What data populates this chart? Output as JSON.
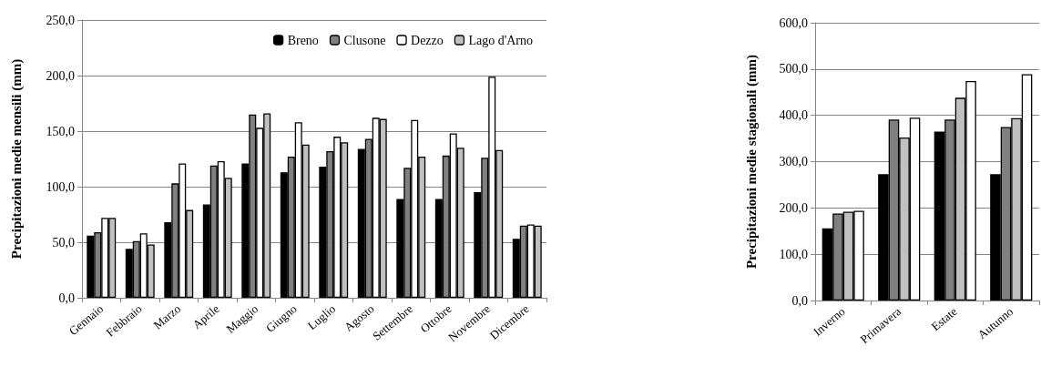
{
  "chart_data": [
    {
      "type": "bar",
      "ylabel": "Precipitazioni medie mensili (mm)",
      "categories": [
        "Gennaio",
        "Febbraio",
        "Marzo",
        "Aprile",
        "Maggio",
        "Giugno",
        "Luglio",
        "Agosto",
        "Settembre",
        "Ottobre",
        "Novembre",
        "Dicembre"
      ],
      "series": [
        {
          "name": "Breno",
          "color": "#000000",
          "values": [
            56,
            44,
            68,
            84,
            121,
            113,
            118,
            134,
            89,
            89,
            95,
            53
          ]
        },
        {
          "name": "Clusone",
          "color": "#808080",
          "values": [
            59,
            51,
            103,
            119,
            165,
            127,
            132,
            143,
            117,
            128,
            126,
            65
          ]
        },
        {
          "name": "Dezzo",
          "color": "#ffffff",
          "values": [
            72,
            58,
            121,
            123,
            153,
            158,
            145,
            162,
            160,
            148,
            199,
            66
          ]
        },
        {
          "name": "Lago d'Arno",
          "color": "#c0c0c0",
          "values": [
            72,
            48,
            79,
            108,
            166,
            138,
            140,
            161,
            127,
            135,
            133,
            65
          ]
        }
      ],
      "ylim": [
        0,
        250
      ],
      "yticks": [
        {
          "value": 0,
          "label": "0,0"
        },
        {
          "value": 50,
          "label": "50,0"
        },
        {
          "value": 100,
          "label": "100,0"
        },
        {
          "value": 150,
          "label": "150,0"
        },
        {
          "value": 200,
          "label": "200,0"
        },
        {
          "value": 250,
          "label": "250,0"
        }
      ],
      "grid": "y",
      "legend": "top right"
    },
    {
      "type": "bar",
      "ylabel": "Precipitazioni medie stagionali (mm)",
      "categories": [
        "Inverno",
        "Primavera",
        "Estate",
        "Autunno"
      ],
      "series": [
        {
          "color": "#000000",
          "values": [
            156,
            273,
            365,
            273
          ]
        },
        {
          "color": "#808080",
          "values": [
            188,
            391,
            391,
            375
          ]
        },
        {
          "color": "#c0c0c0",
          "values": [
            192,
            352,
            438,
            394
          ]
        },
        {
          "color": "#ffffff",
          "values": [
            194,
            395,
            474,
            489
          ]
        }
      ],
      "ylim": [
        0,
        600
      ],
      "yticks": [
        {
          "value": 0,
          "label": "0,0"
        },
        {
          "value": 100,
          "label": "100,0"
        },
        {
          "value": 200,
          "label": "200,0"
        },
        {
          "value": 300,
          "label": "300,0"
        },
        {
          "value": 400,
          "label": "400,0"
        },
        {
          "value": 500,
          "label": "500,0"
        },
        {
          "value": 600,
          "label": "600,0"
        }
      ],
      "grid": "y",
      "legend": false
    }
  ]
}
